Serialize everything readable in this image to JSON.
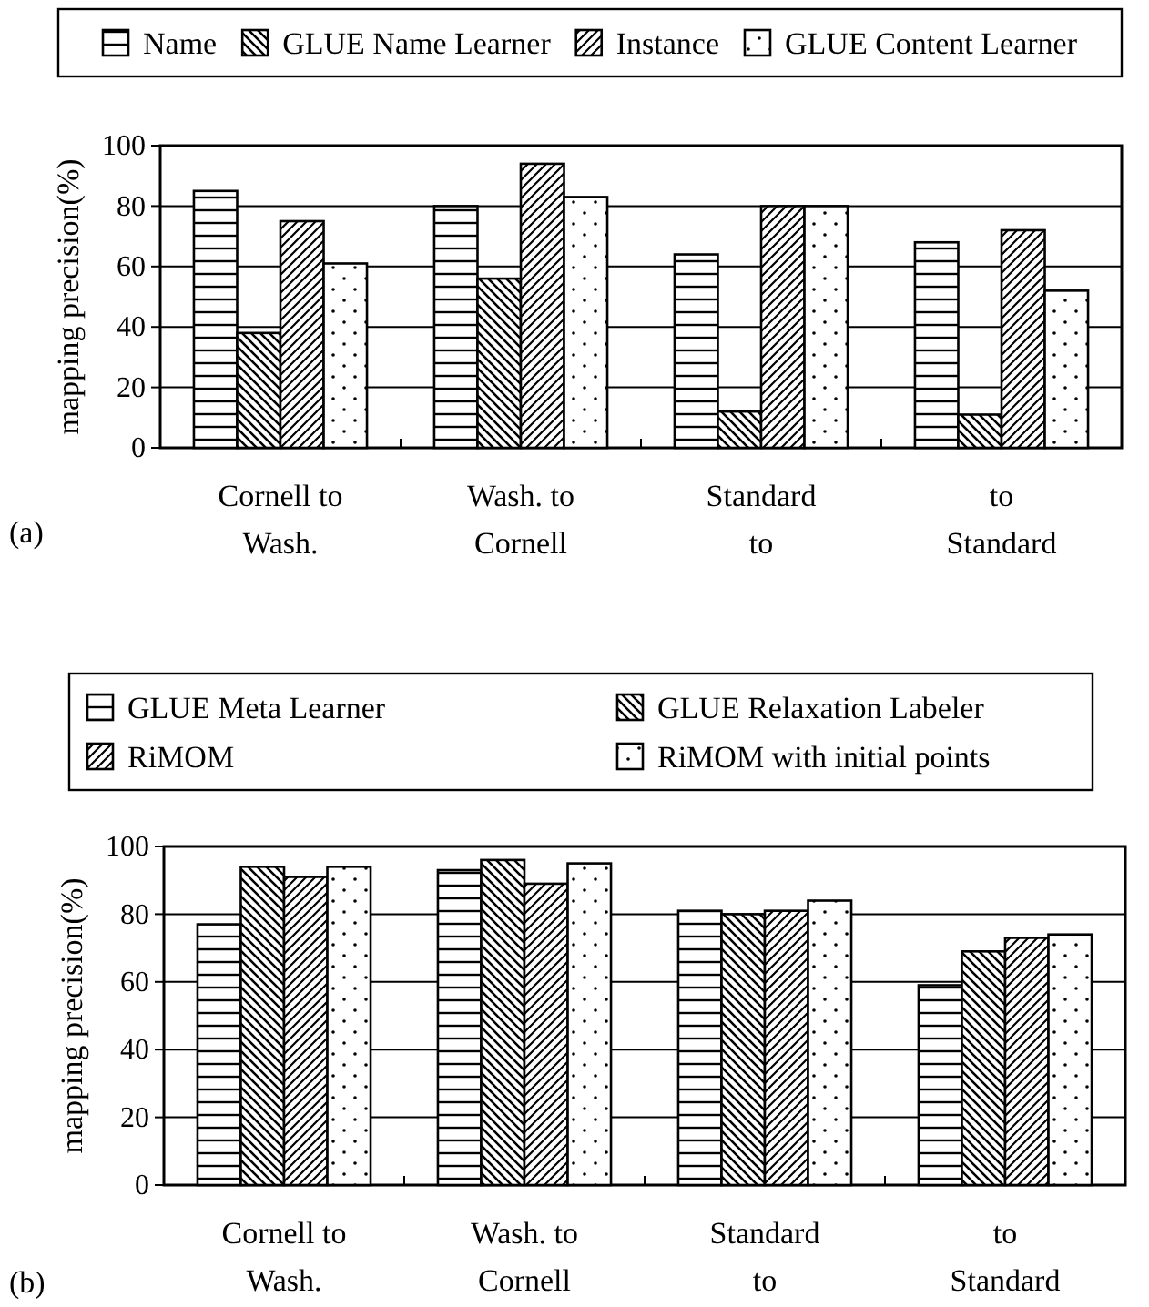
{
  "chart_data": [
    {
      "type": "bar",
      "ylabel": "mapping precision(%)",
      "categories": [
        "Cornell to Wash.",
        "Wash. to Cornell",
        "Standard to",
        "to Standard"
      ],
      "series": [
        {
          "name": "Name",
          "color": "#000000",
          "values": [
            85,
            80,
            64,
            68
          ]
        },
        {
          "name": "GLUE Name Learner",
          "color": "#000000",
          "values": [
            38,
            56,
            12,
            11
          ]
        },
        {
          "name": "Instance",
          "color": "#000000",
          "values": [
            75,
            94,
            80,
            72
          ]
        },
        {
          "name": "GLUE Content Learner",
          "color": "#000000",
          "values": [
            61,
            83,
            80,
            52
          ]
        }
      ],
      "ylim": [
        0,
        100
      ],
      "yticks": [
        0,
        20,
        40,
        60,
        80,
        100
      ],
      "grid": "y",
      "legend": "top",
      "annotations": [
        "(a)"
      ]
    },
    {
      "type": "bar",
      "ylabel": "mapping precision(%)",
      "categories": [
        "Cornell to Wash.",
        "Wash. to Cornell",
        "Standard to",
        "to Standard"
      ],
      "series": [
        {
          "name": "GLUE Meta Learner",
          "color": "#000000",
          "values": [
            77,
            93,
            81,
            59
          ]
        },
        {
          "name": "GLUE Relaxation Labeler",
          "color": "#000000",
          "values": [
            94,
            96,
            80,
            69
          ]
        },
        {
          "name": "RiMOM",
          "color": "#000000",
          "values": [
            91,
            89,
            81,
            73
          ]
        },
        {
          "name": "RiMOM with initial points",
          "color": "#000000",
          "values": [
            94,
            95,
            84,
            74
          ]
        }
      ],
      "ylim": [
        0,
        100
      ],
      "yticks": [
        0,
        20,
        40,
        60,
        80,
        100
      ],
      "grid": "y",
      "legend": "top",
      "annotations": [
        "(b)"
      ]
    }
  ]
}
